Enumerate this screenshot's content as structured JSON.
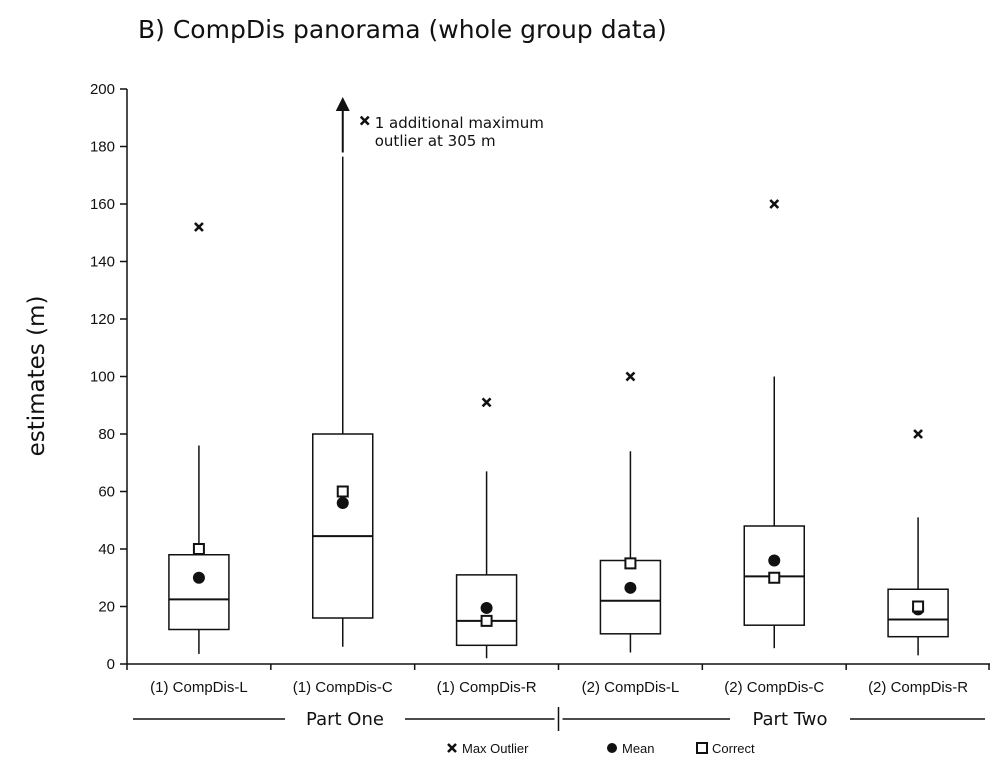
{
  "chart_data": {
    "type": "box",
    "title": "B) CompDis panorama (whole group data)",
    "ylabel": "estimates (m)",
    "xlabel": "",
    "ylim": [
      0,
      200
    ],
    "yticks": [
      0,
      20,
      40,
      60,
      80,
      100,
      120,
      140,
      160,
      180,
      200
    ],
    "grid": false,
    "categories": [
      "(1) CompDis-L",
      "(1) CompDis-C",
      "(1) CompDis-R",
      "(2) CompDis-L",
      "(2) CompDis-C",
      "(2) CompDis-R"
    ],
    "boxes": [
      {
        "min": 3.5,
        "q1": 12,
        "median": 22.5,
        "q3": 38,
        "max": 76,
        "mean": 30,
        "correct": 40,
        "max_outlier": 152
      },
      {
        "min": 6,
        "q1": 16,
        "median": 44.5,
        "q3": 80,
        "max": 176.5,
        "mean": 56,
        "correct": 60,
        "max_outlier": 189
      },
      {
        "min": 2,
        "q1": 6.5,
        "median": 15,
        "q3": 31,
        "max": 67,
        "mean": 19.5,
        "correct": 15,
        "max_outlier": 91
      },
      {
        "min": 4,
        "q1": 10.5,
        "median": 22,
        "q3": 36,
        "max": 74,
        "mean": 26.5,
        "correct": 35,
        "max_outlier": 100
      },
      {
        "min": 5.5,
        "q1": 13.5,
        "median": 30.5,
        "q3": 48,
        "max": 100,
        "mean": 36,
        "correct": 30,
        "max_outlier": 160
      },
      {
        "min": 3,
        "q1": 9.5,
        "median": 15.5,
        "q3": 26,
        "max": 51,
        "mean": 19,
        "correct": 20,
        "max_outlier": 80
      }
    ],
    "parts": [
      {
        "label": "Part One",
        "spans": [
          0,
          2
        ]
      },
      {
        "label": "Part Two",
        "spans": [
          3,
          5
        ]
      }
    ],
    "annotation": {
      "category_index": 1,
      "lines": [
        "1 additional maximum",
        "outlier at 305 m"
      ]
    },
    "legend": {
      "position": "bottom-center",
      "entries": [
        {
          "marker": "x",
          "label": "Max Outlier"
        },
        {
          "marker": "circle",
          "label": "Mean"
        },
        {
          "marker": "square",
          "label": "Correct"
        }
      ]
    }
  }
}
